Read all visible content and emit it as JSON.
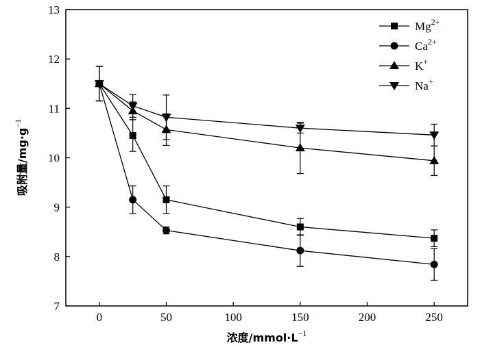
{
  "chart_data": {
    "type": "line",
    "xlabel": "浓度/mmol·L",
    "xlabel_sup": "−1",
    "ylabel": "吸附量/mg·g",
    "ylabel_sup": "−1",
    "xlim": [
      -25,
      275
    ],
    "ylim": [
      7,
      13
    ],
    "xticks": [
      0,
      50,
      100,
      150,
      200,
      250
    ],
    "yticks": [
      7,
      8,
      9,
      10,
      11,
      12,
      13
    ],
    "legend_position": "top-right",
    "grid": false,
    "x": [
      0,
      25,
      50,
      150,
      250
    ],
    "series": [
      {
        "base": "Mg",
        "sup": "2+",
        "marker": "square",
        "values": [
          11.5,
          10.45,
          9.15,
          8.6,
          8.37
        ],
        "errors": [
          0.35,
          0.32,
          0.28,
          0.17,
          0.17
        ]
      },
      {
        "base": "Ca",
        "sup": "2+",
        "marker": "circle",
        "values": [
          11.5,
          9.15,
          8.53,
          8.12,
          7.84
        ],
        "errors": [
          0.35,
          0.28,
          0.07,
          0.32,
          0.32
        ]
      },
      {
        "base": "K",
        "sup": "+",
        "marker": "triangle-up",
        "values": [
          11.5,
          10.95,
          10.57,
          10.2,
          9.94
        ],
        "errors": [
          0.35,
          0.18,
          0.32,
          0.52,
          0.3
        ]
      },
      {
        "base": "Na",
        "sup": "+",
        "marker": "triangle-down",
        "values": [
          11.5,
          11.05,
          10.82,
          10.6,
          10.46
        ],
        "errors": [
          0.35,
          0.23,
          0.45,
          0.1,
          0.22
        ]
      }
    ]
  }
}
